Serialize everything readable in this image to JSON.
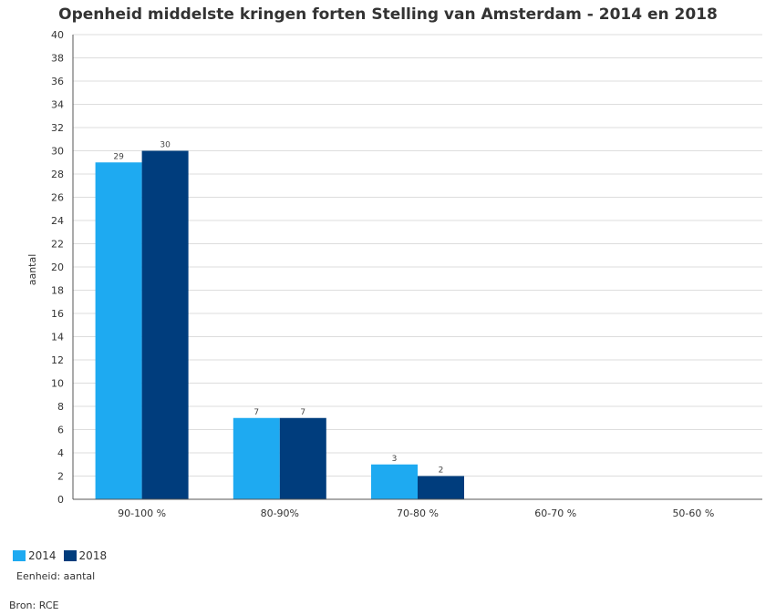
{
  "chart_data": {
    "type": "bar",
    "title": "Openheid middelste kringen forten Stelling van Amsterdam - 2014 en 2018",
    "ylabel": "aantal",
    "xlabel": "",
    "categories": [
      "90-100 %",
      "80-90%",
      "70-80 %",
      "60-70 %",
      "50-60 %"
    ],
    "series": [
      {
        "name": "2014",
        "color": "#1eaaf1",
        "values": [
          29,
          7,
          3,
          null,
          null
        ],
        "labels": [
          "29",
          "7",
          "3",
          "",
          ""
        ]
      },
      {
        "name": "2018",
        "color": "#003d7d",
        "values": [
          30,
          7,
          2,
          null,
          null
        ],
        "labels": [
          "30",
          "7",
          "2",
          "",
          ""
        ]
      }
    ],
    "ylim": [
      0,
      40
    ],
    "yticks": [
      "0",
      "2",
      "4",
      "6",
      "8",
      "10",
      "12",
      "14",
      "16",
      "18",
      "20",
      "22",
      "24",
      "26",
      "28",
      "30",
      "32",
      "34",
      "36",
      "38",
      "40"
    ],
    "grid": true,
    "legend_position": "bottom-left"
  },
  "notes": {
    "unit": "Eenheid: aantal",
    "source": "Bron: RCE"
  }
}
